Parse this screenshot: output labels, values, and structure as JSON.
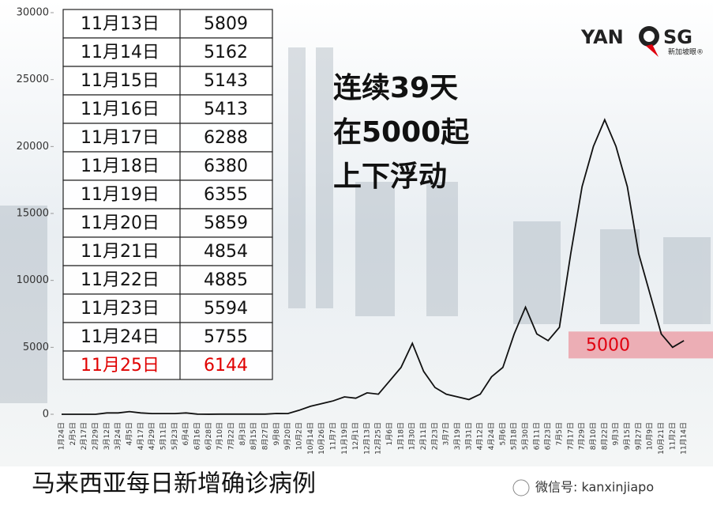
{
  "chart_data": {
    "type": "line",
    "categories": [
      "1月24日",
      "2月5日",
      "2月17日",
      "2月29日",
      "3月12日",
      "3月24日",
      "4月5日",
      "4月17日",
      "4月29日",
      "5月11日",
      "5月23日",
      "6月4日",
      "6月16日",
      "6月28日",
      "7月10日",
      "7月22日",
      "8月3日",
      "8月15日",
      "8月27日",
      "9月8日",
      "9月20日",
      "10月2日",
      "10月14日",
      "10月26日",
      "11月7日",
      "11月19日",
      "12月1日",
      "12月13日",
      "12月25日",
      "1月6日",
      "1月18日",
      "1月30日",
      "2月11日",
      "2月23日",
      "3月7日",
      "3月19日",
      "3月31日",
      "4月12日",
      "4月24日",
      "5月6日",
      "5月18日",
      "5月30日",
      "6月11日",
      "6月23日",
      "7月5日",
      "7月17日",
      "7月29日",
      "8月10日",
      "8月22日",
      "9月3日",
      "9月15日",
      "9月27日",
      "10月9日",
      "10月21日",
      "11月2日",
      "11月14日"
    ],
    "values": [
      0,
      0,
      0,
      0,
      100,
      100,
      200,
      100,
      50,
      50,
      50,
      100,
      10,
      5,
      10,
      10,
      10,
      10,
      10,
      60,
      50,
      300,
      600,
      800,
      1000,
      1300,
      1200,
      1600,
      1500,
      2500,
      3500,
      5300,
      3200,
      2000,
      1500,
      1300,
      1100,
      1500,
      2800,
      3500,
      6000,
      8000,
      6000,
      5500,
      6500,
      12000,
      17000,
      20000,
      22000,
      20000,
      17000,
      12000,
      9000,
      6000,
      5000,
      5500
    ],
    "color": "#111111",
    "ylim": [
      0,
      30000
    ],
    "yticks": [
      0,
      5000,
      10000,
      15000,
      20000,
      25000,
      30000
    ],
    "reference": {
      "value": 5000,
      "color": "rgba(232,90,105,0.45)",
      "label_color": "#e0000f"
    },
    "annotation": [
      "连续39天",
      "在5000起",
      "上下浮动"
    ]
  },
  "table": {
    "highlight_color": "#e00000",
    "rows": [
      [
        "11月13日",
        5809
      ],
      [
        "11月14日",
        5162
      ],
      [
        "11月15日",
        5143
      ],
      [
        "11月16日",
        5413
      ],
      [
        "11月17日",
        6288
      ],
      [
        "11月18日",
        6380
      ],
      [
        "11月19日",
        6355
      ],
      [
        "11月20日",
        5859
      ],
      [
        "11月21日",
        4854
      ],
      [
        "11月22日",
        4885
      ],
      [
        "11月23日",
        5594
      ],
      [
        "11月24日",
        5755
      ],
      [
        "11月25日",
        6144
      ]
    ]
  },
  "logo": {
    "left": "YAN",
    "right": "SG",
    "sub": "新加坡眼®"
  },
  "footer": {
    "title": "马来西亚每日新增确诊病例",
    "wechat": "微信号: kanxinjiapo"
  }
}
